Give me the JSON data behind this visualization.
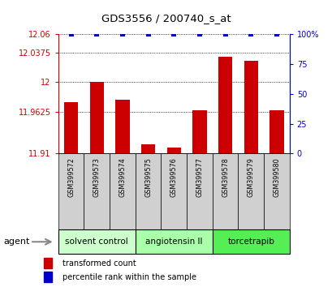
{
  "title": "GDS3556 / 200740_s_at",
  "samples": [
    "GSM399572",
    "GSM399573",
    "GSM399574",
    "GSM399575",
    "GSM399576",
    "GSM399577",
    "GSM399578",
    "GSM399579",
    "GSM399580"
  ],
  "bar_values": [
    11.975,
    12.0,
    11.978,
    11.922,
    11.918,
    11.965,
    12.032,
    12.027,
    11.965
  ],
  "percentile_values": [
    100,
    100,
    100,
    100,
    100,
    100,
    100,
    100,
    100
  ],
  "ylim_left": [
    11.91,
    12.06
  ],
  "ylim_right": [
    0,
    100
  ],
  "yticks_left": [
    11.91,
    11.9625,
    12.0,
    12.0375,
    12.06
  ],
  "yticks_right": [
    0,
    25,
    50,
    75,
    100
  ],
  "ytick_labels_left": [
    "11.91",
    "11.9625",
    "12",
    "12.0375",
    "12.06"
  ],
  "ytick_labels_right": [
    "0",
    "25",
    "50",
    "75",
    "100%"
  ],
  "bar_color": "#cc0000",
  "dot_color": "#0000cc",
  "groups": [
    {
      "label": "solvent control",
      "start": 0,
      "end": 3,
      "color": "#ccffcc"
    },
    {
      "label": "angiotensin II",
      "start": 3,
      "end": 6,
      "color": "#aaffaa"
    },
    {
      "label": "torcetrapib",
      "start": 6,
      "end": 9,
      "color": "#55ee55"
    }
  ],
  "agent_label": "agent",
  "legend_bar_label": "transformed count",
  "legend_dot_label": "percentile rank within the sample",
  "bar_color_legend": "#cc0000",
  "dot_color_legend": "#0000cc",
  "left_axis_color": "#cc0000",
  "right_axis_color": "#0000cc",
  "sample_cell_color": "#d0d0d0",
  "background_color": "#ffffff"
}
